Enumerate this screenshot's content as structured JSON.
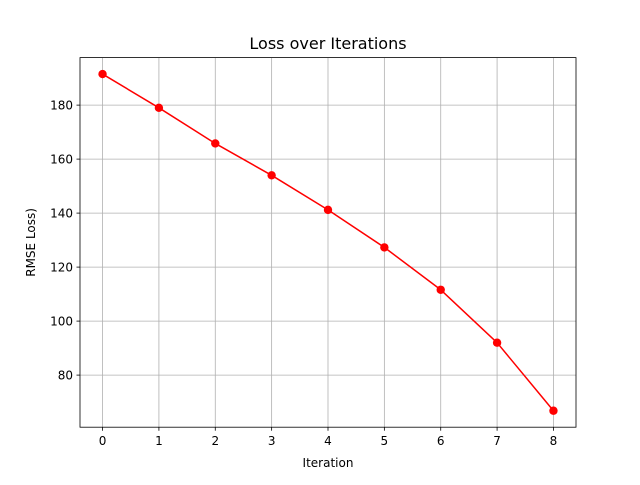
{
  "chart_data": {
    "type": "line",
    "title": "Loss over Iterations",
    "xlabel": "Iteration",
    "ylabel": "RMSE Loss)",
    "x": [
      0,
      1,
      2,
      3,
      4,
      5,
      6,
      7,
      8
    ],
    "series": [
      {
        "values": [
          191.5,
          179.0,
          165.8,
          154.0,
          141.2,
          127.3,
          111.6,
          92.0,
          66.8
        ],
        "color": "#ff0000",
        "marker": "circle"
      }
    ],
    "xlim": [
      -0.4,
      8.4
    ],
    "ylim": [
      60.7,
      197.6
    ],
    "xticks": [
      0,
      1,
      2,
      3,
      4,
      5,
      6,
      7,
      8
    ],
    "yticks": [
      80,
      100,
      120,
      140,
      160,
      180
    ],
    "grid": true
  }
}
